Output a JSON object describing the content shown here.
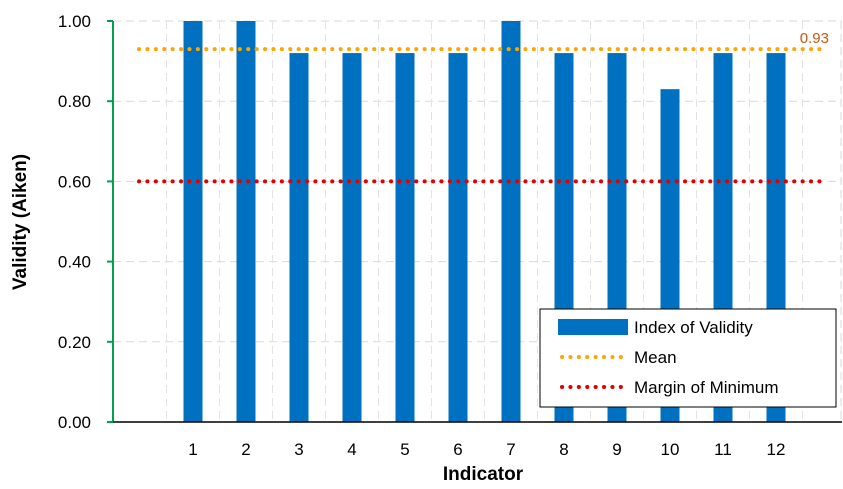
{
  "chart_data": {
    "type": "bar",
    "xlabel": "Indicator",
    "ylabel": "Validity (Aiken)",
    "categories": [
      "1",
      "2",
      "3",
      "4",
      "5",
      "6",
      "7",
      "8",
      "9",
      "10",
      "11",
      "12"
    ],
    "series": [
      {
        "name": "Index of Validity",
        "type": "bar",
        "color": "#0070C0",
        "values": [
          1.0,
          1.0,
          0.92,
          0.92,
          0.92,
          0.92,
          1.0,
          0.92,
          0.92,
          0.83,
          0.92,
          0.92
        ]
      },
      {
        "name": "Mean",
        "type": "dotted-line",
        "color": "#FFA500",
        "value": 0.93,
        "label": "0.93",
        "label_color": "#C55A11"
      },
      {
        "name": "Margin of Minimum",
        "type": "dotted-line",
        "color": "#E00000",
        "value": 0.6
      }
    ],
    "yticks": [
      "0.00",
      "0.20",
      "0.40",
      "0.60",
      "0.80",
      "1.00"
    ],
    "ylim": [
      0,
      1.0
    ],
    "grid": true,
    "legend_position": "bottom-right",
    "axis_color": "#00A050"
  }
}
